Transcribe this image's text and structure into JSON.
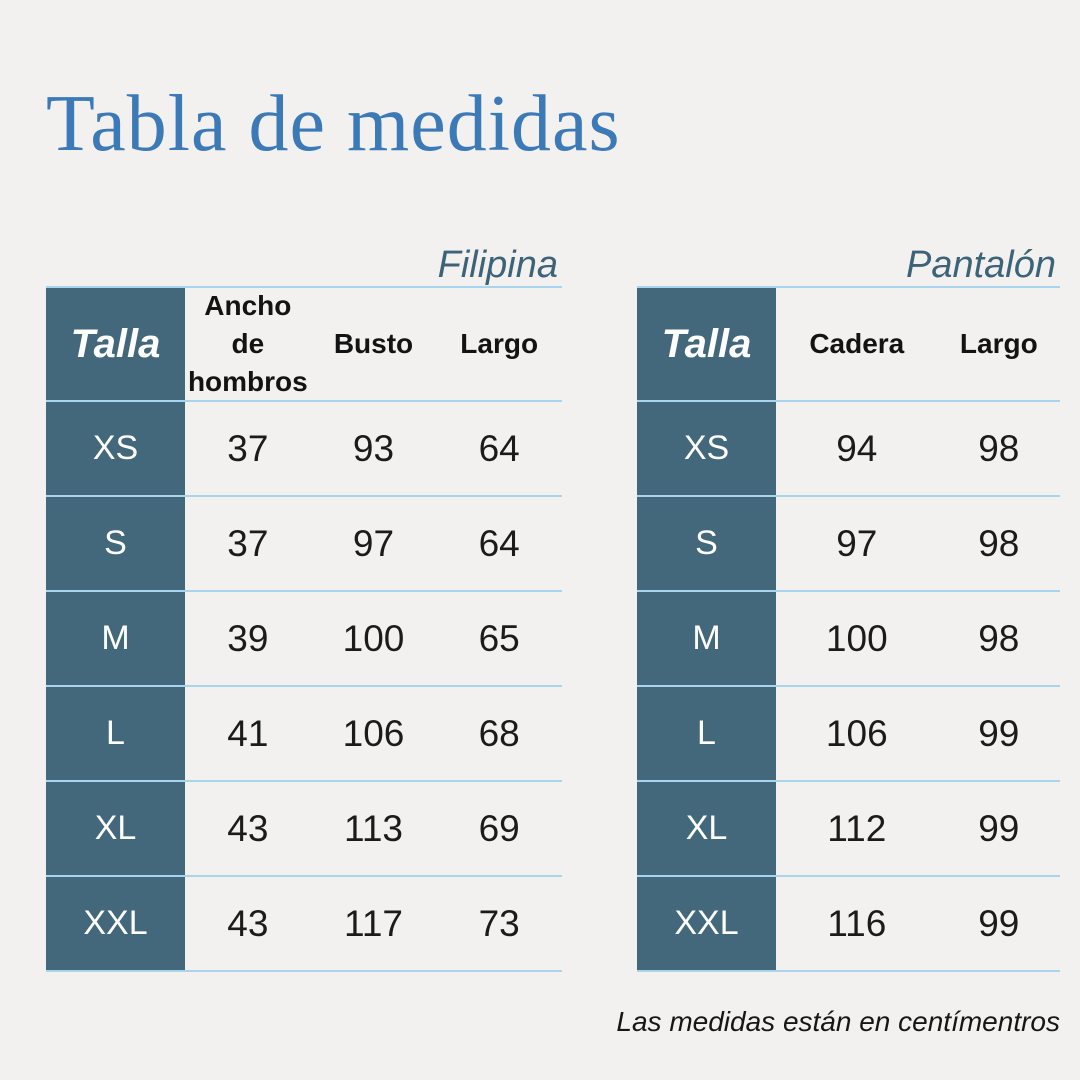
{
  "page": {
    "title": "Tabla de medidas",
    "note": "Las medidas están en centímentros",
    "background": "#f2f1f0"
  },
  "colors": {
    "title_blue": "#3c79b7",
    "table_dark_teal": "#43687b",
    "separator_light_blue": "#a9d4ee",
    "label_slate": "#3d6379"
  },
  "tables": {
    "filipina": {
      "label": "Filipina",
      "corner_header": "Talla",
      "columns": [
        "Ancho de hombros",
        "Busto",
        "Largo"
      ],
      "rows": [
        {
          "size": "XS",
          "values": [
            "37",
            "93",
            "64"
          ]
        },
        {
          "size": "S",
          "values": [
            "37",
            "97",
            "64"
          ]
        },
        {
          "size": "M",
          "values": [
            "39",
            "100",
            "65"
          ]
        },
        {
          "size": "L",
          "values": [
            "41",
            "106",
            "68"
          ]
        },
        {
          "size": "XL",
          "values": [
            "43",
            "113",
            "69"
          ]
        },
        {
          "size": "XXL",
          "values": [
            "43",
            "117",
            "73"
          ]
        }
      ]
    },
    "pantalon": {
      "label": "Pantalón",
      "corner_header": "Talla",
      "columns": [
        "Cadera",
        "Largo"
      ],
      "rows": [
        {
          "size": "XS",
          "values": [
            "94",
            "98"
          ]
        },
        {
          "size": "S",
          "values": [
            "97",
            "98"
          ]
        },
        {
          "size": "M",
          "values": [
            "100",
            "98"
          ]
        },
        {
          "size": "L",
          "values": [
            "106",
            "99"
          ]
        },
        {
          "size": "XL",
          "values": [
            "112",
            "99"
          ]
        },
        {
          "size": "XXL",
          "values": [
            "116",
            "99"
          ]
        }
      ]
    }
  },
  "chart_data": [
    {
      "type": "table",
      "title": "Filipina",
      "columns": [
        "Talla",
        "Ancho de hombros",
        "Busto",
        "Largo"
      ],
      "rows": [
        [
          "XS",
          37,
          93,
          64
        ],
        [
          "S",
          37,
          97,
          64
        ],
        [
          "M",
          39,
          100,
          65
        ],
        [
          "L",
          41,
          106,
          68
        ],
        [
          "XL",
          43,
          113,
          69
        ],
        [
          "XXL",
          43,
          117,
          73
        ]
      ],
      "units": "cm"
    },
    {
      "type": "table",
      "title": "Pantalón",
      "columns": [
        "Talla",
        "Cadera",
        "Largo"
      ],
      "rows": [
        [
          "XS",
          94,
          98
        ],
        [
          "S",
          97,
          98
        ],
        [
          "M",
          100,
          98
        ],
        [
          "L",
          106,
          99
        ],
        [
          "XL",
          112,
          99
        ],
        [
          "XXL",
          116,
          99
        ]
      ],
      "units": "cm"
    }
  ]
}
